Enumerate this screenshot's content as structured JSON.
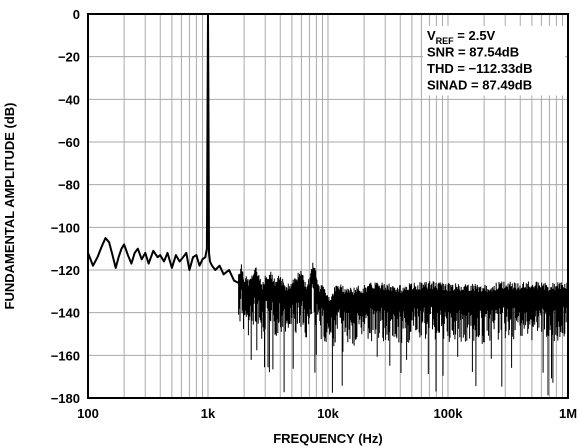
{
  "chart_data": {
    "type": "line",
    "xlabel": "FREQUENCY (Hz)",
    "ylabel": "FUNDAMENTAL AMPLITUDE (dB)",
    "x_scale": "log",
    "xlim": [
      100,
      1000000
    ],
    "ylim": [
      -180,
      0
    ],
    "x_ticks": [
      {
        "value": 100,
        "label": "100"
      },
      {
        "value": 1000,
        "label": "1k"
      },
      {
        "value": 10000,
        "label": "10k"
      },
      {
        "value": 100000,
        "label": "100k"
      },
      {
        "value": 1000000,
        "label": "1M"
      }
    ],
    "y_ticks": [
      {
        "value": 0,
        "label": "0"
      },
      {
        "value": -20,
        "label": "−20"
      },
      {
        "value": -40,
        "label": "−40"
      },
      {
        "value": -60,
        "label": "−60"
      },
      {
        "value": -80,
        "label": "−80"
      },
      {
        "value": -100,
        "label": "−100"
      },
      {
        "value": -120,
        "label": "−120"
      },
      {
        "value": -140,
        "label": "−140"
      },
      {
        "value": -160,
        "label": "−160"
      },
      {
        "value": -180,
        "label": "−180"
      }
    ],
    "grid": true,
    "annotation": {
      "vref_main": "V",
      "vref_sub": "REF",
      "vref_value": " = 2.5V",
      "snr": "SNR = 87.54dB",
      "thd": "THD = −112.33dB",
      "sinad": "SINAD = 87.49dB"
    },
    "series": [
      {
        "x": [
          100,
          110,
          120,
          130,
          140,
          150,
          160,
          170,
          180,
          190,
          200,
          215,
          230,
          245,
          260,
          280,
          300,
          320,
          350,
          380,
          400,
          430,
          460,
          500,
          540,
          580,
          620,
          660,
          700,
          750,
          800,
          850,
          900,
          950,
          980,
          990,
          1000,
          1010,
          1020,
          1040,
          1080,
          1150,
          1250,
          1350,
          1500,
          1650,
          1800,
          1900,
          2000,
          2200,
          2500,
          2800,
          3000,
          3300,
          3600,
          4000,
          4500,
          5000,
          5500,
          6000,
          6500,
          7000,
          7500,
          8000,
          8500,
          9000,
          9500,
          10000,
          12000,
          15000,
          20000,
          25000,
          30000,
          40000,
          50000,
          70000,
          100000,
          150000,
          200000,
          300000,
          400000,
          500000,
          700000,
          1000000
        ],
        "y": [
          -112,
          -118,
          -114,
          -109,
          -105,
          -107,
          -113,
          -119,
          -114,
          -110,
          -108,
          -113,
          -117,
          -112,
          -110,
          -115,
          -112,
          -117,
          -111,
          -114,
          -113,
          -116,
          -112,
          -119,
          -113,
          -116,
          -114,
          -112,
          -120,
          -114,
          -113,
          -118,
          -115,
          -114,
          -110,
          -50,
          0,
          -50,
          -112,
          -116,
          -118,
          -120,
          -118,
          -122,
          -120,
          -125,
          -126,
          -122,
          -128,
          -130,
          -124,
          -132,
          -128,
          -126,
          -130,
          -128,
          -133,
          -130,
          -128,
          -125,
          -132,
          -129,
          -120,
          -128,
          -133,
          -130,
          -134,
          -138,
          -132,
          -134,
          -133,
          -131,
          -132,
          -133,
          -132,
          -131,
          -132,
          -132,
          -133,
          -131,
          -132,
          -131,
          -132,
          -131
        ]
      }
    ]
  }
}
